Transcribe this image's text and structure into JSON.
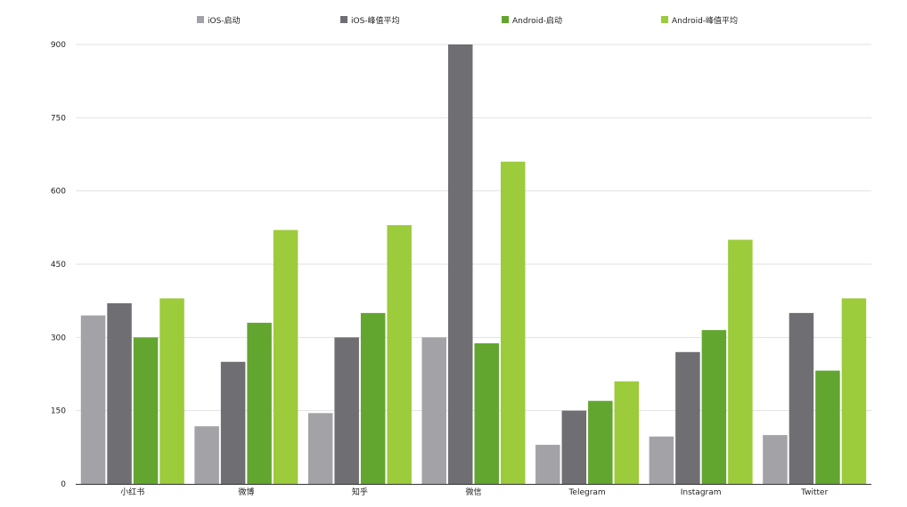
{
  "chart_data": {
    "type": "bar",
    "categories": [
      "小红书",
      "微博",
      "知乎",
      "微信",
      "Telegram",
      "Instagram",
      "Twitter"
    ],
    "series": [
      {
        "name": "iOS-启动",
        "color": "#a3a2a6",
        "values": [
          345,
          118,
          145,
          300,
          80,
          97,
          100
        ]
      },
      {
        "name": "iOS-峰值平均",
        "color": "#6f6e72",
        "values": [
          370,
          250,
          300,
          900,
          150,
          270,
          350
        ]
      },
      {
        "name": "Android-启动",
        "color": "#62a62f",
        "values": [
          300,
          330,
          350,
          288,
          170,
          315,
          232
        ]
      },
      {
        "name": "Android-峰值平均",
        "color": "#9ccb3b",
        "values": [
          380,
          520,
          530,
          660,
          210,
          500,
          380
        ]
      }
    ],
    "ylim": [
      0,
      900
    ],
    "yticks": [
      0,
      150,
      300,
      450,
      600,
      750,
      900
    ],
    "grid": true,
    "legend_position": "top"
  }
}
